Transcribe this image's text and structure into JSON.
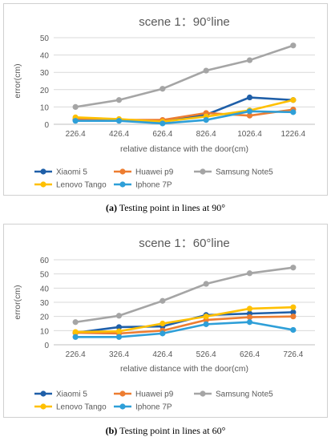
{
  "chart_data": [
    {
      "type": "line",
      "title": "scene 1：90°line",
      "xlabel": "relative distance with the door(cm)",
      "ylabel": "error(cm)",
      "categories": [
        "226.4",
        "426.4",
        "626.4",
        "826.4",
        "1026.4",
        "1226.4"
      ],
      "yticks": [
        0,
        10,
        20,
        30,
        40,
        50
      ],
      "ylim": [
        0,
        50
      ],
      "grid": true,
      "legend": "bottom",
      "series": [
        {
          "name": "Xiaomi 5",
          "color": "#1f5fa8",
          "values": [
            2.5,
            2.5,
            2.0,
            5.5,
            15.5,
            14.0
          ]
        },
        {
          "name": "Huawei p9",
          "color": "#ed7d31",
          "values": [
            3.0,
            2.5,
            2.5,
            6.5,
            5.0,
            8.5
          ]
        },
        {
          "name": "Samsung Note5",
          "color": "#a5a5a5",
          "values": [
            10.0,
            14.0,
            20.5,
            31.0,
            37.0,
            45.5
          ]
        },
        {
          "name": "Lenovo Tango",
          "color": "#ffc000",
          "values": [
            4.0,
            3.0,
            1.5,
            4.5,
            8.0,
            14.0
          ]
        },
        {
          "name": "Iphone 7P",
          "color": "#2e9fd8",
          "values": [
            2.0,
            2.0,
            0.5,
            2.5,
            7.5,
            7.0
          ]
        }
      ]
    },
    {
      "type": "line",
      "title": "scene 1：60°line",
      "xlabel": "relative distance with the door(cm)",
      "ylabel": "error(cm)",
      "categories": [
        "226.4",
        "326.4",
        "426.4",
        "526.4",
        "626.4",
        "726.4"
      ],
      "yticks": [
        0,
        10,
        20,
        30,
        40,
        50,
        60
      ],
      "ylim": [
        0,
        60
      ],
      "grid": true,
      "legend": "bottom",
      "series": [
        {
          "name": "Xiaomi 5",
          "color": "#1f5fa8",
          "values": [
            8.5,
            12.5,
            13.0,
            21.0,
            22.0,
            23.0
          ]
        },
        {
          "name": "Huawei p9",
          "color": "#ed7d31",
          "values": [
            8.5,
            8.0,
            10.0,
            17.5,
            19.5,
            20.0
          ]
        },
        {
          "name": "Samsung Note5",
          "color": "#a5a5a5",
          "values": [
            16.0,
            20.5,
            31.0,
            43.0,
            50.5,
            54.5
          ]
        },
        {
          "name": "Lenovo Tango",
          "color": "#ffc000",
          "values": [
            9.0,
            9.5,
            15.0,
            20.0,
            25.5,
            26.5
          ]
        },
        {
          "name": "Iphone 7P",
          "color": "#2e9fd8",
          "values": [
            5.5,
            5.5,
            8.0,
            14.5,
            16.0,
            10.5
          ]
        }
      ]
    }
  ],
  "captions": [
    {
      "label": "(a)",
      "text": " Testing point in lines at 90°"
    },
    {
      "label": "(b)",
      "text": " Testing point in lines at 60°"
    }
  ]
}
